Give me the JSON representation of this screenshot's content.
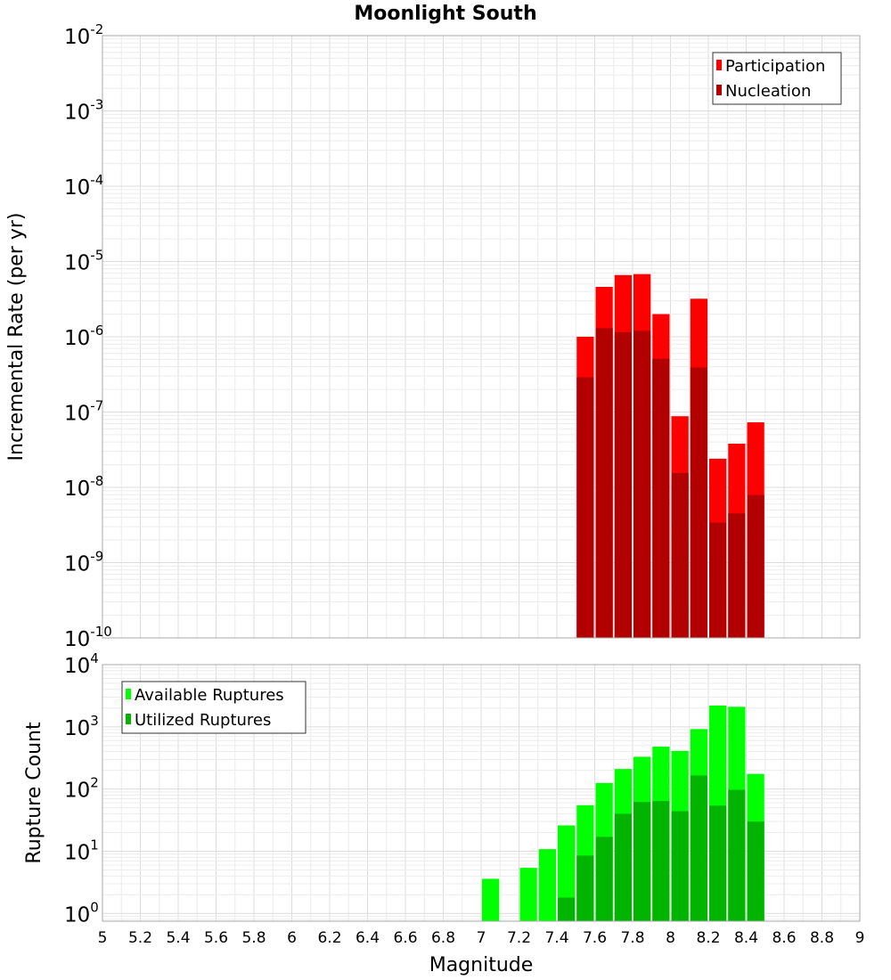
{
  "chart_data": [
    {
      "type": "bar",
      "title": "Moonlight South",
      "xlabel": "",
      "ylabel": "Incremental Rate (per yr)",
      "y_scale": "log",
      "xlim": [
        5,
        9
      ],
      "ylim": [
        1e-10,
        0.01
      ],
      "x_ticks": [
        "5",
        "5.2",
        "5.4",
        "5.6",
        "5.8",
        "6",
        "6.2",
        "6.4",
        "6.6",
        "6.8",
        "7",
        "7.2",
        "7.4",
        "7.6",
        "7.8",
        "8",
        "8.2",
        "8.4",
        "8.6",
        "8.8",
        "9"
      ],
      "x_tick_labels_visible": false,
      "y_ticks": [
        {
          "value": 1e-10,
          "base": "10",
          "exp": "-10"
        },
        {
          "value": 1e-09,
          "base": "10",
          "exp": "-9"
        },
        {
          "value": 1e-08,
          "base": "10",
          "exp": "-8"
        },
        {
          "value": 1e-07,
          "base": "10",
          "exp": "-7"
        },
        {
          "value": 1e-06,
          "base": "10",
          "exp": "-6"
        },
        {
          "value": 1e-05,
          "base": "10",
          "exp": "-5"
        },
        {
          "value": 0.0001,
          "base": "10",
          "exp": "-4"
        },
        {
          "value": 0.001,
          "base": "10",
          "exp": "-3"
        },
        {
          "value": 0.01,
          "base": "10",
          "exp": "-2"
        }
      ],
      "bin_width": 0.1,
      "grid": true,
      "legend_position": "top-right",
      "x": [
        7.55,
        7.65,
        7.75,
        7.85,
        7.95,
        8.05,
        8.15,
        8.25,
        8.35,
        8.45
      ],
      "series": [
        {
          "name": "Participation",
          "color": "#ff0000",
          "values": [
            1e-06,
            4.6e-06,
            6.6e-06,
            6.8e-06,
            2e-06,
            8.8e-08,
            3.2e-06,
            2.4e-08,
            3.8e-08,
            7.3e-08
          ]
        },
        {
          "name": "Nucleation",
          "color": "#b20000",
          "values": [
            2.9e-07,
            1.3e-06,
            1.15e-06,
            1.2e-06,
            5.1e-07,
            1.55e-08,
            3.9e-07,
            3.4e-09,
            4.5e-09,
            7.9e-09
          ]
        }
      ]
    },
    {
      "type": "bar",
      "title": "",
      "xlabel": "Magnitude",
      "ylabel": "Rupture Count",
      "y_scale": "log",
      "xlim": [
        5,
        9
      ],
      "ylim": [
        0.75,
        10000.0
      ],
      "x_ticks": [
        "5",
        "5.2",
        "5.4",
        "5.6",
        "5.8",
        "6",
        "6.2",
        "6.4",
        "6.6",
        "6.8",
        "7",
        "7.2",
        "7.4",
        "7.6",
        "7.8",
        "8",
        "8.2",
        "8.4",
        "8.6",
        "8.8",
        "9"
      ],
      "x_tick_labels_visible": true,
      "y_ticks": [
        {
          "value": 1,
          "base": "10",
          "exp": "0"
        },
        {
          "value": 10,
          "base": "10",
          "exp": "1"
        },
        {
          "value": 100,
          "base": "10",
          "exp": "2"
        },
        {
          "value": 1000,
          "base": "10",
          "exp": "3"
        },
        {
          "value": 10000,
          "base": "10",
          "exp": "4"
        }
      ],
      "bin_width": 0.1,
      "grid": true,
      "legend_position": "top-left",
      "x": [
        7.05,
        7.25,
        7.35,
        7.45,
        7.55,
        7.65,
        7.75,
        7.85,
        7.95,
        8.05,
        8.15,
        8.25,
        8.35,
        8.45
      ],
      "series": [
        {
          "name": "Available Ruptures",
          "color": "#00ff00",
          "values": [
            3.6,
            5.4,
            10.8,
            26,
            55,
            125,
            210,
            330,
            480,
            410,
            920,
            2200,
            2100,
            175
          ]
        },
        {
          "name": "Utilized Ruptures",
          "color": "#00b400",
          "values": [
            null,
            null,
            null,
            1.8,
            8.5,
            17,
            40,
            62,
            64,
            44,
            165,
            54,
            97,
            30
          ]
        }
      ]
    }
  ]
}
